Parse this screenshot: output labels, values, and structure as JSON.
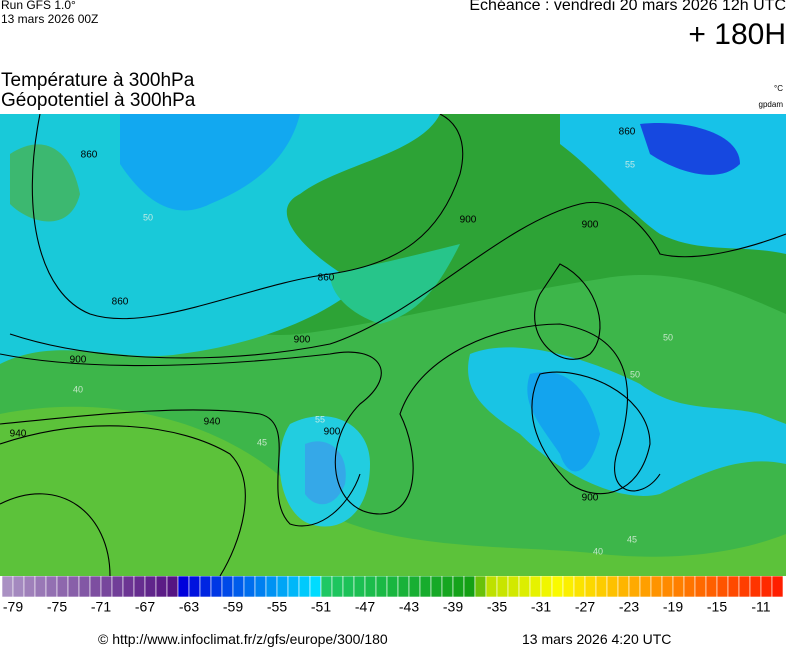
{
  "header": {
    "run": "Run GFS 1.0°",
    "run_date": "13 mars 2026 00Z",
    "valid": "Echéance : vendredi 20 mars 2026 12h UTC",
    "lead": "+ 180H",
    "field1": "Température à 300hPa",
    "field2": "Géopotentiel à 300hPa",
    "unit1": "°C",
    "unit2": "gpdam"
  },
  "contour_labels": {
    "geopotential": [
      "860",
      "860",
      "900",
      "900",
      "860",
      "860",
      "900",
      "900",
      "940",
      "940",
      "900",
      "900"
    ],
    "temperature": [
      "55",
      "50",
      "45",
      "40",
      "40",
      "45",
      "50",
      "50",
      "55"
    ]
  },
  "colorbar": {
    "labels": [
      "-79",
      "-75",
      "-71",
      "-67",
      "-63",
      "-59",
      "-55",
      "-51",
      "-47",
      "-43",
      "-39",
      "-35",
      "-31",
      "-27",
      "-23",
      "-19",
      "-15",
      "-11"
    ]
  },
  "footer": {
    "source": "© http://www.infoclimat.fr/z/gfs/europe/300/180",
    "generated": "13 mars 2026  4:20 UTC"
  }
}
